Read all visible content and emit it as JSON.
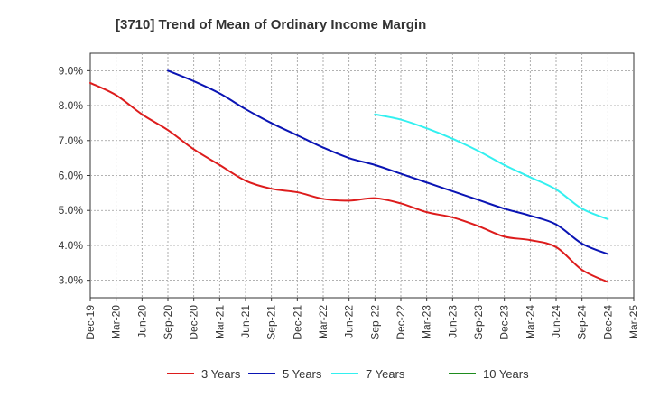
{
  "chart_data": {
    "type": "line",
    "title": "[3710]  Trend of Mean of Ordinary Income Margin",
    "xlabel": "",
    "ylabel": "",
    "x_ticks": [
      "Dec-19",
      "Mar-20",
      "Jun-20",
      "Sep-20",
      "Dec-20",
      "Mar-21",
      "Jun-21",
      "Sep-21",
      "Dec-21",
      "Mar-22",
      "Jun-22",
      "Sep-22",
      "Dec-22",
      "Mar-23",
      "Jun-23",
      "Sep-23",
      "Dec-23",
      "Mar-24",
      "Jun-24",
      "Sep-24",
      "Dec-24",
      "Mar-25"
    ],
    "y_ticks": [
      "3.0%",
      "4.0%",
      "5.0%",
      "6.0%",
      "7.0%",
      "8.0%",
      "9.0%"
    ],
    "ylim": [
      2.5,
      9.5
    ],
    "grid": true,
    "legend_position": "bottom",
    "series": [
      {
        "name": "3 Years",
        "color": "#dd1c1c",
        "x": [
          "Dec-19",
          "Mar-20",
          "Jun-20",
          "Sep-20",
          "Dec-20",
          "Mar-21",
          "Jun-21",
          "Sep-21",
          "Dec-21",
          "Mar-22",
          "Jun-22",
          "Sep-22",
          "Dec-22",
          "Mar-23",
          "Jun-23",
          "Sep-23",
          "Dec-23",
          "Mar-24",
          "Jun-24",
          "Sep-24",
          "Dec-24"
        ],
        "values": [
          8.65,
          8.3,
          7.75,
          7.3,
          6.75,
          6.3,
          5.85,
          5.62,
          5.52,
          5.33,
          5.28,
          5.35,
          5.2,
          4.95,
          4.8,
          4.55,
          4.25,
          4.15,
          3.95,
          3.3,
          2.95
        ]
      },
      {
        "name": "5 Years",
        "color": "#0a14b4",
        "x": [
          "Sep-20",
          "Dec-20",
          "Mar-21",
          "Jun-21",
          "Sep-21",
          "Dec-21",
          "Mar-22",
          "Jun-22",
          "Sep-22",
          "Dec-22",
          "Mar-23",
          "Jun-23",
          "Sep-23",
          "Dec-23",
          "Mar-24",
          "Jun-24",
          "Sep-24",
          "Dec-24"
        ],
        "values": [
          9.0,
          8.7,
          8.35,
          7.9,
          7.5,
          7.15,
          6.8,
          6.5,
          6.3,
          6.05,
          5.8,
          5.55,
          5.3,
          5.05,
          4.85,
          4.6,
          4.05,
          3.75
        ]
      },
      {
        "name": "7 Years",
        "color": "#33f0f0",
        "x": [
          "Sep-22",
          "Dec-22",
          "Mar-23",
          "Jun-23",
          "Sep-23",
          "Dec-23",
          "Mar-24",
          "Jun-24",
          "Sep-24",
          "Dec-24"
        ],
        "values": [
          7.75,
          7.6,
          7.35,
          7.05,
          6.7,
          6.3,
          5.95,
          5.6,
          5.05,
          4.75
        ]
      },
      {
        "name": "10 Years",
        "color": "#1e8c1e",
        "x": [],
        "values": []
      }
    ]
  }
}
